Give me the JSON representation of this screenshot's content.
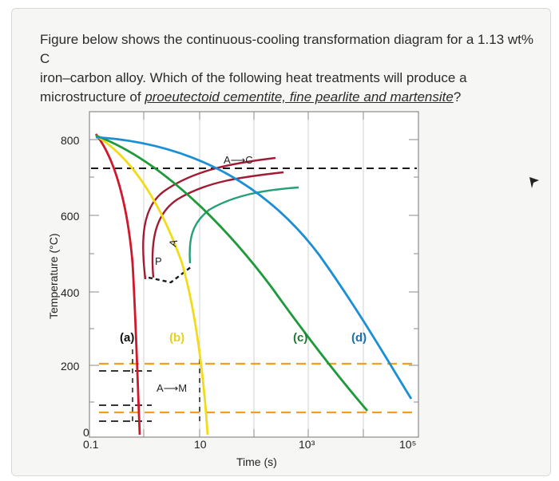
{
  "question": {
    "line1": "Figure below shows the continuous-cooling transformation diagram for a 1.13 wt% C",
    "line2": "iron–carbon alloy. Which of the following heat treatments will produce a",
    "line3_prefix": "microstructure of ",
    "line3_underlined": "proeutectoid cementite, fine pearlite and martensite",
    "line3_suffix": "?"
  },
  "diagram": {
    "y_axis_label": "Temperature (°C)",
    "x_axis_label": "Time (s)",
    "y_ticks": [
      "800",
      "600",
      "400",
      "200",
      "0"
    ],
    "x_ticks": [
      "0.1",
      "10",
      "10³",
      "10⁵"
    ],
    "region_labels": {
      "austenite_to_cementite": "A⟶C",
      "austenite_to_martensite": "A⟶M",
      "pearlite": "P",
      "austenite": "A"
    },
    "curve_labels": {
      "a": "(a)",
      "b": "(b)",
      "c": "(c)",
      "d": "(d)"
    },
    "curve_colors": {
      "a": "#d0182c",
      "b": "#f2dc1a",
      "c": "#1f9a3a",
      "d": "#1b8fd6",
      "transformation_red": "#a01c34",
      "transformation_green": "#25a078",
      "dashed_black": "#1a1a1a",
      "dashed_orange": "#f0a020"
    }
  }
}
